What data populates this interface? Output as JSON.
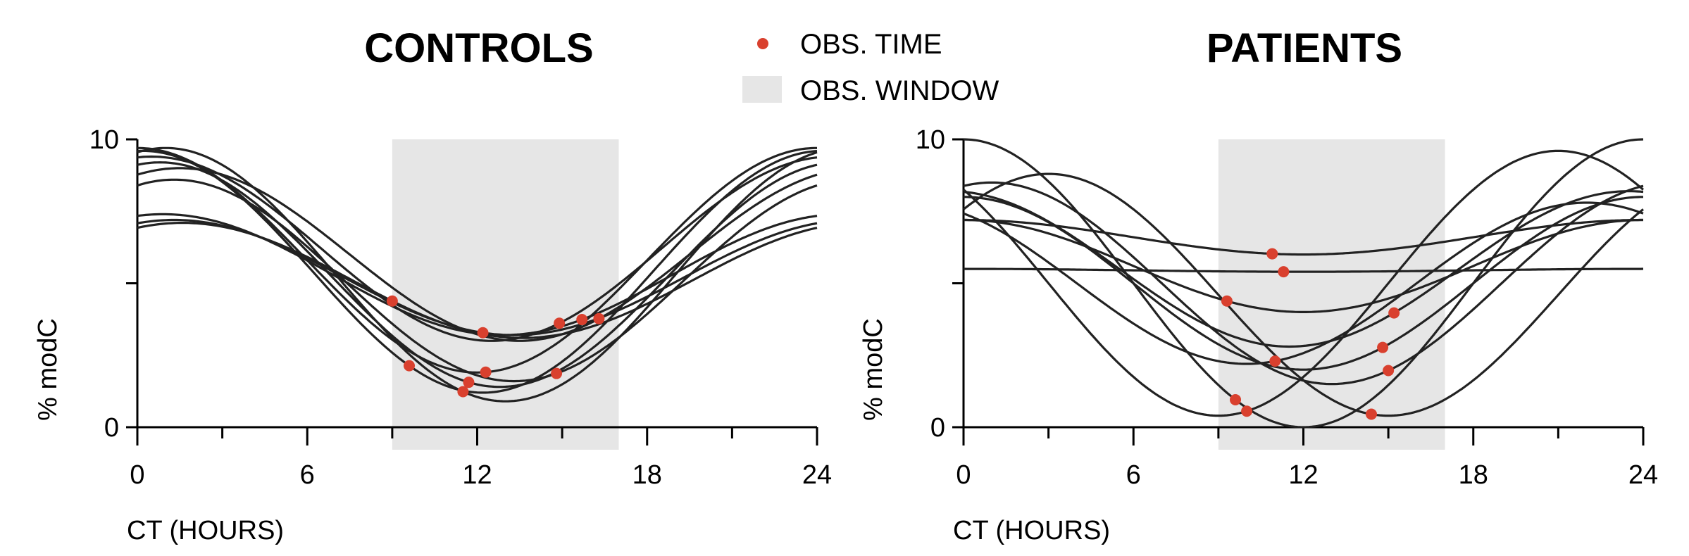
{
  "legend": {
    "obs_time": "OBS. TIME",
    "obs_window": "OBS. WINDOW",
    "marker_color": "#d9402e",
    "window_color": "#e6e6e6"
  },
  "chart_data": [
    {
      "type": "line",
      "title": "CONTROLS",
      "xlabel": "CT (HOURS)",
      "ylabel": "% modC",
      "xlim": [
        0,
        24
      ],
      "ylim": [
        0,
        10
      ],
      "xticks": [
        0,
        6,
        12,
        18,
        24
      ],
      "xtick_labels": [
        "0",
        "6",
        "12",
        "18",
        "24"
      ],
      "yticks": [
        0,
        10
      ],
      "ytick_labels": [
        "0",
        "10"
      ],
      "window": [
        9,
        17
      ],
      "series": [
        {
          "mesor": 5.3,
          "amplitude": 4.4,
          "peak": 1.0,
          "obs": 11.5
        },
        {
          "mesor": 5.3,
          "amplitude": 3.9,
          "peak": 0.8,
          "obs": 11.7
        },
        {
          "mesor": 5.4,
          "amplitude": 4.2,
          "peak": 0.2,
          "obs": 9.6
        },
        {
          "mesor": 5.1,
          "amplitude": 3.5,
          "peak": 1.3,
          "obs": 14.8
        },
        {
          "mesor": 5.8,
          "amplitude": 3.9,
          "peak": 0.0,
          "obs": 12.3
        },
        {
          "mesor": 6.0,
          "amplitude": 3.0,
          "peak": 1.5,
          "obs": 16.3
        },
        {
          "mesor": 6.2,
          "amplitude": 3.2,
          "peak": 0.5,
          "obs": 14.9
        },
        {
          "mesor": 5.1,
          "amplitude": 2.0,
          "peak": 1.6,
          "obs": 9.0
        },
        {
          "mesor": 5.2,
          "amplitude": 2.0,
          "peak": 1.3,
          "obs": 12.2
        },
        {
          "mesor": 5.3,
          "amplitude": 2.1,
          "peak": 0.9,
          "obs": 15.7
        }
      ]
    },
    {
      "type": "line",
      "title": "PATIENTS",
      "xlabel": "CT (HOURS)",
      "ylabel": "% modC",
      "xlim": [
        0,
        24
      ],
      "ylim": [
        0,
        10
      ],
      "xticks": [
        0,
        6,
        12,
        18,
        24
      ],
      "xtick_labels": [
        "0",
        "6",
        "12",
        "18",
        "24"
      ],
      "yticks": [
        0,
        10
      ],
      "ytick_labels": [
        "0",
        "10"
      ],
      "window": [
        9,
        17
      ],
      "series": [
        {
          "mesor": 5.0,
          "amplitude": 5.0,
          "peak": 0.0,
          "obs": 9.6
        },
        {
          "mesor": 5.0,
          "amplitude": 4.6,
          "peak": 21.0,
          "obs": 10.0
        },
        {
          "mesor": 4.6,
          "amplitude": 4.2,
          "peak": 3.0,
          "obs": 14.4
        },
        {
          "mesor": 5.0,
          "amplitude": 3.0,
          "peak": 24.0,
          "obs": 14.8
        },
        {
          "mesor": 5.0,
          "amplitude": 3.5,
          "peak": 1.0,
          "obs": 15.0
        },
        {
          "mesor": 5.0,
          "amplitude": 2.8,
          "peak": 22.0,
          "obs": 11.0
        },
        {
          "mesor": 5.5,
          "amplitude": 2.7,
          "peak": 23.5,
          "obs": 15.2
        },
        {
          "mesor": 5.6,
          "amplitude": 1.6,
          "peak": 0.0,
          "obs": 9.3
        },
        {
          "mesor": 6.6,
          "amplitude": 0.6,
          "peak": 0.0,
          "obs": 10.9
        },
        {
          "mesor": 5.45,
          "amplitude": 0.05,
          "peak": 0.0,
          "obs": 11.3
        }
      ]
    }
  ]
}
